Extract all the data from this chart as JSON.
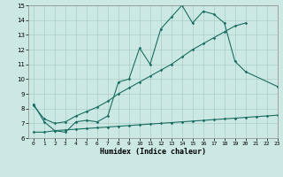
{
  "title": "",
  "xlabel": "Humidex (Indice chaleur)",
  "xlim": [
    -0.5,
    23
  ],
  "ylim": [
    6,
    15
  ],
  "xticks": [
    0,
    1,
    2,
    3,
    4,
    5,
    6,
    7,
    8,
    9,
    10,
    11,
    12,
    13,
    14,
    15,
    16,
    17,
    18,
    19,
    20,
    21,
    22,
    23
  ],
  "yticks": [
    6,
    7,
    8,
    9,
    10,
    11,
    12,
    13,
    14,
    15
  ],
  "bg_color": "#cce8e4",
  "grid_color": "#aacec8",
  "line_color": "#1a6e62",
  "line1_x": [
    0,
    1,
    2,
    3,
    4,
    5,
    6,
    7,
    8,
    9,
    10,
    11,
    12,
    13,
    14,
    15,
    16,
    17,
    18,
    19,
    20,
    23
  ],
  "line1_y": [
    8.3,
    7.1,
    6.5,
    6.4,
    7.1,
    7.2,
    7.1,
    7.5,
    9.8,
    10.0,
    12.1,
    11.0,
    13.4,
    14.2,
    15.0,
    13.8,
    14.6,
    14.4,
    13.8,
    11.2,
    10.5,
    9.5
  ],
  "line2_x": [
    0,
    1,
    2,
    3,
    4,
    5,
    6,
    7,
    8,
    9,
    10,
    11,
    12,
    13,
    14,
    15,
    16,
    17,
    18,
    19,
    20
  ],
  "line2_y": [
    8.2,
    7.3,
    7.0,
    7.1,
    7.5,
    7.8,
    8.1,
    8.5,
    9.0,
    9.4,
    9.8,
    10.2,
    10.6,
    11.0,
    11.5,
    12.0,
    12.4,
    12.8,
    13.2,
    13.6,
    13.8
  ],
  "line3_x": [
    0,
    1,
    2,
    3,
    4,
    5,
    6,
    7,
    8,
    9,
    10,
    11,
    12,
    13,
    14,
    15,
    16,
    17,
    18,
    19,
    20,
    21,
    22,
    23
  ],
  "line3_y": [
    6.4,
    6.4,
    6.5,
    6.55,
    6.6,
    6.65,
    6.7,
    6.75,
    6.8,
    6.85,
    6.9,
    6.95,
    7.0,
    7.05,
    7.1,
    7.15,
    7.2,
    7.25,
    7.3,
    7.35,
    7.4,
    7.45,
    7.5,
    7.55
  ]
}
